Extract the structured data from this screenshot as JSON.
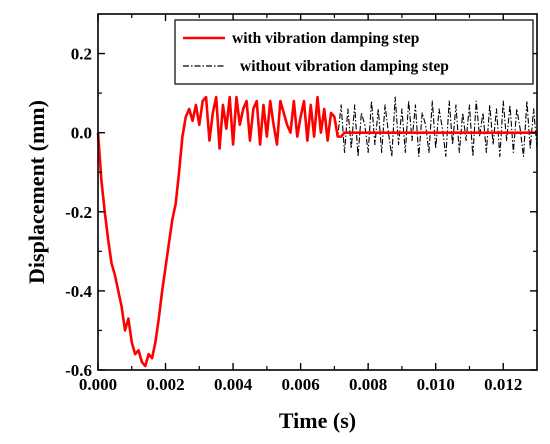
{
  "chart_data": {
    "type": "line",
    "title": "",
    "xlabel": "Time (s)",
    "ylabel": "Displacement (mm)",
    "xlim": [
      0,
      0.013
    ],
    "ylim": [
      -0.6,
      0.3
    ],
    "x_ticks": [
      0,
      0.002,
      0.004,
      0.006,
      0.008,
      0.01,
      0.012
    ],
    "x_tick_labels": [
      "0.000",
      "0.002",
      "0.004",
      "0.006",
      "0.008",
      "0.010",
      "0.012"
    ],
    "y_ticks": [
      -0.6,
      -0.4,
      -0.2,
      0.0,
      0.2
    ],
    "y_tick_labels": [
      "-0.6",
      "-0.4",
      "-0.2",
      "0.0",
      "0.2"
    ],
    "grid": false,
    "legend_position": "top-right",
    "series": [
      {
        "name": "with vibration damping step",
        "color": "#ff0000",
        "style": "solid",
        "x": [
          0,
          0.0001,
          0.0002,
          0.0003,
          0.0004,
          0.0005,
          0.0006,
          0.0007,
          0.0008,
          0.0009,
          0.001,
          0.0011,
          0.0012,
          0.0013,
          0.0014,
          0.0015,
          0.0016,
          0.0017,
          0.0018,
          0.0019,
          0.002,
          0.0021,
          0.0022,
          0.0023,
          0.0024,
          0.0025,
          0.0026,
          0.0027,
          0.0028,
          0.0029,
          0.003,
          0.0031,
          0.0032,
          0.0033,
          0.0034,
          0.0035,
          0.0036,
          0.0037,
          0.0038,
          0.0039,
          0.004,
          0.0041,
          0.0042,
          0.0043,
          0.0044,
          0.0045,
          0.0046,
          0.0047,
          0.0048,
          0.0049,
          0.005,
          0.0051,
          0.0052,
          0.0053,
          0.0054,
          0.0055,
          0.0056,
          0.0057,
          0.0058,
          0.0059,
          0.006,
          0.0061,
          0.0062,
          0.0063,
          0.0064,
          0.0065,
          0.0066,
          0.0067,
          0.0068,
          0.0069,
          0.007,
          0.0071,
          0.0072,
          0.0073,
          0.0075,
          0.008,
          0.009,
          0.01,
          0.011,
          0.012,
          0.013
        ],
        "values": [
          0.0,
          -0.12,
          -0.2,
          -0.27,
          -0.33,
          -0.36,
          -0.4,
          -0.44,
          -0.5,
          -0.47,
          -0.53,
          -0.56,
          -0.55,
          -0.58,
          -0.59,
          -0.56,
          -0.57,
          -0.53,
          -0.47,
          -0.4,
          -0.34,
          -0.28,
          -0.22,
          -0.18,
          -0.1,
          -0.01,
          0.04,
          0.06,
          0.03,
          0.07,
          0.02,
          0.08,
          0.09,
          -0.02,
          0.05,
          0.09,
          -0.04,
          0.07,
          0.01,
          0.09,
          -0.03,
          0.09,
          0.02,
          0.06,
          0.08,
          -0.02,
          0.06,
          0.08,
          -0.03,
          0.07,
          -0.01,
          0.08,
          0.02,
          -0.03,
          0.08,
          0.05,
          0.02,
          0.0,
          0.08,
          -0.01,
          0.04,
          0.08,
          -0.02,
          0.07,
          -0.01,
          0.09,
          0.0,
          0.06,
          -0.02,
          0.05,
          0.04,
          -0.01,
          -0.01,
          0.0,
          0.0,
          0.0,
          0.0,
          0.0,
          0.0,
          0.0,
          0.0
        ]
      },
      {
        "name": "without vibration damping step",
        "color": "#000000",
        "style": "dash-dot",
        "x": [
          0,
          0.0001,
          0.0002,
          0.0003,
          0.0004,
          0.0005,
          0.0006,
          0.0007,
          0.0008,
          0.0009,
          0.001,
          0.0011,
          0.0012,
          0.0013,
          0.0014,
          0.0015,
          0.0016,
          0.0017,
          0.0018,
          0.0019,
          0.002,
          0.0021,
          0.0022,
          0.0023,
          0.0024,
          0.0025,
          0.0026,
          0.0027,
          0.0028,
          0.0029,
          0.003,
          0.0031,
          0.0032,
          0.0033,
          0.0034,
          0.0035,
          0.0036,
          0.0037,
          0.0038,
          0.0039,
          0.004,
          0.0041,
          0.0042,
          0.0043,
          0.0044,
          0.0045,
          0.0046,
          0.0047,
          0.0048,
          0.0049,
          0.005,
          0.0051,
          0.0052,
          0.0053,
          0.0054,
          0.0055,
          0.0056,
          0.0057,
          0.0058,
          0.0059,
          0.006,
          0.0061,
          0.0062,
          0.0063,
          0.0064,
          0.0065,
          0.0066,
          0.0067,
          0.0068,
          0.0069,
          0.007,
          0.0071,
          0.0072,
          0.0073,
          0.0074,
          0.0075,
          0.0076,
          0.0077,
          0.0078,
          0.0079,
          0.008,
          0.0081,
          0.0082,
          0.0083,
          0.0084,
          0.0085,
          0.0086,
          0.0087,
          0.0088,
          0.0089,
          0.009,
          0.0091,
          0.0092,
          0.0093,
          0.0094,
          0.0095,
          0.0096,
          0.0097,
          0.0098,
          0.0099,
          0.01,
          0.0101,
          0.0102,
          0.0103,
          0.0104,
          0.0105,
          0.0106,
          0.0107,
          0.0108,
          0.0109,
          0.011,
          0.0111,
          0.0112,
          0.0113,
          0.0114,
          0.0115,
          0.0116,
          0.0117,
          0.0118,
          0.0119,
          0.012,
          0.0121,
          0.0122,
          0.0123,
          0.0124,
          0.0125,
          0.0126,
          0.0127,
          0.0128,
          0.0129,
          0.013
        ],
        "values": [
          0.0,
          -0.12,
          -0.2,
          -0.27,
          -0.33,
          -0.36,
          -0.4,
          -0.44,
          -0.5,
          -0.47,
          -0.53,
          -0.56,
          -0.55,
          -0.58,
          -0.59,
          -0.56,
          -0.57,
          -0.53,
          -0.47,
          -0.4,
          -0.34,
          -0.28,
          -0.22,
          -0.18,
          -0.1,
          -0.01,
          0.04,
          0.06,
          0.03,
          0.07,
          0.02,
          0.08,
          0.09,
          -0.02,
          0.05,
          0.09,
          -0.04,
          0.07,
          0.01,
          0.09,
          -0.03,
          0.09,
          0.02,
          0.06,
          0.08,
          -0.02,
          0.06,
          0.08,
          -0.03,
          0.07,
          -0.01,
          0.08,
          0.02,
          -0.03,
          0.08,
          0.05,
          0.02,
          0.0,
          0.08,
          -0.01,
          0.04,
          0.08,
          -0.02,
          0.07,
          -0.01,
          0.09,
          0.0,
          0.06,
          -0.02,
          0.05,
          0.04,
          -0.01,
          0.07,
          -0.05,
          0.06,
          -0.04,
          0.07,
          -0.06,
          0.05,
          0.02,
          -0.05,
          0.08,
          -0.03,
          0.06,
          -0.05,
          0.07,
          0.0,
          -0.06,
          0.09,
          -0.03,
          0.06,
          -0.05,
          0.08,
          -0.02,
          0.07,
          -0.06,
          0.05,
          0.02,
          -0.05,
          0.08,
          -0.04,
          0.06,
          0.01,
          -0.06,
          0.08,
          -0.03,
          0.07,
          -0.05,
          0.05,
          -0.02,
          0.07,
          -0.06,
          0.08,
          -0.01,
          0.05,
          -0.05,
          0.07,
          -0.03,
          0.06,
          -0.06,
          0.08,
          -0.02,
          0.07,
          -0.05,
          0.06,
          0.01,
          -0.06,
          0.08,
          -0.04,
          0.06,
          -0.04
        ]
      }
    ]
  }
}
